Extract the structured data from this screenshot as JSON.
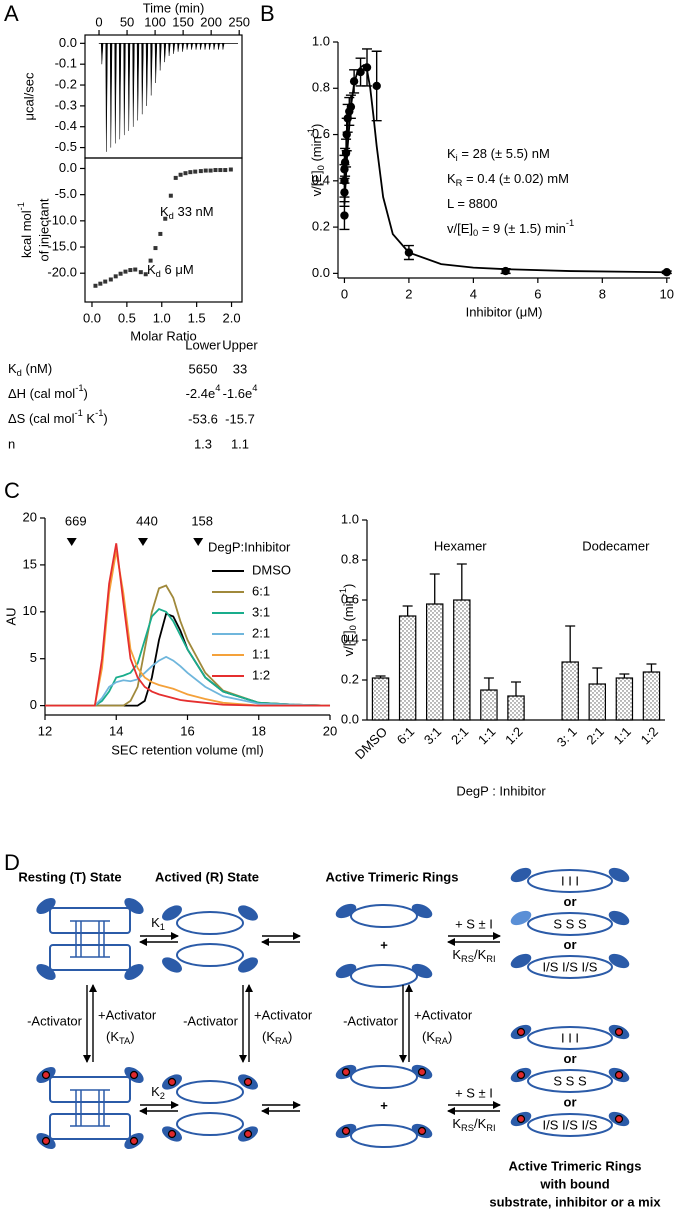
{
  "panel_labels": {
    "a": "A",
    "b": "B",
    "c": "C",
    "d": "D"
  },
  "chart_data": [
    {
      "type": "spike",
      "xlabel": "Time (min)",
      "ylabel": "μcal/sec",
      "x": [
        5,
        13,
        21,
        29,
        37,
        45,
        53,
        61,
        69,
        77,
        85,
        93,
        101,
        109,
        117,
        125,
        133,
        141,
        149,
        157,
        165,
        173,
        181,
        189,
        197,
        205,
        213,
        221
      ],
      "values": [
        -0.1,
        -0.52,
        -0.5,
        -0.48,
        -0.46,
        -0.44,
        -0.42,
        -0.4,
        -0.37,
        -0.34,
        -0.3,
        -0.25,
        -0.19,
        -0.13,
        -0.09,
        -0.06,
        -0.05,
        -0.04,
        -0.04,
        -0.03,
        -0.03,
        -0.03,
        -0.03,
        -0.03,
        -0.03,
        -0.03,
        -0.03,
        -0.03
      ],
      "color": "#000000",
      "xlim": [
        -25,
        255
      ],
      "xticks": [
        0,
        50,
        100,
        150,
        200,
        250
      ],
      "ylim": [
        -0.55,
        0.04
      ],
      "yticks": [
        {
          "value": 0,
          "label": "0.0"
        },
        -0.1,
        -0.2,
        -0.3,
        -0.4,
        -0.5
      ]
    },
    {
      "type": "scatter",
      "xlabel": "Molar Ratio",
      "ylabel": [
        [
          "kcal mol",
          {
            "sup": "-1"
          }
        ],
        "of injectant"
      ],
      "annotations": [
        [
          "K",
          {
            "sub": "d"
          },
          " 33 nM"
        ],
        [
          "K",
          {
            "sub": "d"
          },
          " 6 μM"
        ]
      ],
      "x": [
        0.05,
        0.12,
        0.19,
        0.27,
        0.34,
        0.41,
        0.48,
        0.55,
        0.62,
        0.7,
        0.77,
        0.84,
        0.91,
        0.98,
        1.05,
        1.13,
        1.2,
        1.27,
        1.34,
        1.41,
        1.48,
        1.56,
        1.63,
        1.7,
        1.77,
        1.84,
        1.91,
        1.99
      ],
      "values": [
        -22.4,
        -22.0,
        -21.6,
        -21.2,
        -20.6,
        -20.1,
        -19.7,
        -19.4,
        -19.3,
        -19.8,
        -20.2,
        -17.6,
        -15.2,
        -12.5,
        -9.6,
        -5.2,
        -1.8,
        -1.2,
        -0.9,
        -0.7,
        -0.6,
        -0.5,
        -0.4,
        -0.4,
        -0.3,
        -0.3,
        -0.3,
        -0.2
      ],
      "color": "#333333",
      "xlim": [
        -0.1,
        2.15
      ],
      "xticks": [
        {
          "value": 0,
          "label": "0.0"
        },
        0.5,
        {
          "value": 1,
          "label": "1.0"
        },
        1.5,
        {
          "value": 2,
          "label": "2.0"
        }
      ],
      "ylim": [
        -25.5,
        2
      ],
      "yticks": [
        {
          "value": 0,
          "label": "0.0"
        },
        {
          "value": -5,
          "label": "-5.0"
        },
        {
          "value": -10,
          "label": "-10.0"
        },
        {
          "value": -15,
          "label": "-15.0"
        },
        {
          "value": -20,
          "label": "-20.0"
        }
      ]
    },
    {
      "type": "scatter",
      "xlabel": "Inhibitor  (μM)",
      "ylabel": [
        "v/[E]",
        {
          "sub": "0"
        },
        " (min",
        {
          "sup": "-1"
        },
        ")"
      ],
      "annotations": [
        [
          "K",
          {
            "sub": "i"
          },
          " = 28 (± 5.5) nM"
        ],
        [
          "K",
          {
            "sub": "R"
          },
          " = 0.4 (± 0.02) mM"
        ],
        [
          "L = 8800"
        ],
        [
          "v/[E]",
          {
            "sub": "0"
          },
          " = 9 (± 1.5) min",
          {
            "sup": "-1"
          }
        ]
      ],
      "x": [
        0,
        0,
        0,
        0,
        0.02,
        0.05,
        0.07,
        0.1,
        0.15,
        0.2,
        0.3,
        0.5,
        0.7,
        1,
        2,
        5,
        10
      ],
      "values": [
        0.25,
        0.35,
        0.4,
        0.45,
        0.48,
        0.52,
        0.6,
        0.67,
        0.7,
        0.72,
        0.83,
        0.87,
        0.89,
        0.81,
        0.09,
        0.01,
        0.005
      ],
      "errors": [
        0.06,
        0.06,
        0.07,
        0.06,
        0.06,
        0.06,
        0.07,
        0.06,
        0.06,
        0.05,
        0.05,
        0.06,
        0.08,
        0.15,
        0.03,
        0.01,
        0.005
      ],
      "curve": {
        "x": [
          0,
          0.1,
          0.2,
          0.3,
          0.4,
          0.5,
          0.6,
          0.7,
          0.8,
          0.9,
          1,
          1.2,
          1.5,
          2,
          3,
          4,
          5,
          7,
          10
        ],
        "values": [
          0.3,
          0.55,
          0.72,
          0.82,
          0.87,
          0.89,
          0.9,
          0.88,
          0.8,
          0.68,
          0.55,
          0.33,
          0.17,
          0.09,
          0.04,
          0.025,
          0.018,
          0.01,
          0.005
        ]
      },
      "color": "#000000",
      "xlim": [
        -0.2,
        10.1
      ],
      "xticks": [
        0,
        2,
        4,
        6,
        8,
        10
      ],
      "ylim": [
        -0.02,
        1.0
      ],
      "yticks": [
        {
          "value": 0,
          "label": "0.0"
        },
        0.2,
        0.4,
        0.6,
        0.8,
        {
          "value": 1,
          "label": "1.0"
        }
      ]
    },
    {
      "type": "line",
      "xlabel": "SEC retention volume (ml)",
      "ylabel": "AU",
      "legend_title": "DegP:Inhibitor",
      "markers": [
        {
          "label": "669",
          "x": 12.75
        },
        {
          "label": "440",
          "x": 14.75
        },
        {
          "label": "158",
          "x": 16.3
        }
      ],
      "x": [
        12,
        13,
        13.4,
        13.6,
        13.8,
        14,
        14.2,
        14.4,
        14.6,
        14.8,
        15,
        15.2,
        15.4,
        15.6,
        15.8,
        16,
        16.5,
        17,
        18,
        19,
        20
      ],
      "series": [
        {
          "name": "DMSO",
          "color": "#000000",
          "values": [
            0,
            0,
            0,
            0,
            0,
            0,
            0,
            0,
            0,
            0.5,
            3,
            7,
            9.8,
            9.5,
            8,
            6,
            3,
            1.5,
            0.3,
            0.1,
            0
          ]
        },
        {
          "name": "6:1",
          "color": "#a0893b",
          "values": [
            0,
            0,
            0,
            0,
            0,
            0,
            0,
            0.5,
            2,
            6,
            10,
            12.5,
            12.8,
            11.5,
            9,
            7,
            3.5,
            1.6,
            0.3,
            0.1,
            0
          ]
        },
        {
          "name": "3:1",
          "color": "#19ad8c",
          "values": [
            0,
            0,
            0,
            0.5,
            1.5,
            3,
            3.2,
            3.5,
            4.5,
            7,
            9.5,
            10.3,
            10,
            9,
            7.5,
            6,
            3,
            1.5,
            0.3,
            0.1,
            0
          ]
        },
        {
          "name": "2:1",
          "color": "#6fb6dc",
          "values": [
            0,
            0,
            0,
            0.8,
            2,
            2.5,
            2.7,
            2.6,
            2.8,
            3.5,
            4.2,
            4.8,
            5.2,
            4.8,
            4.2,
            3.5,
            2,
            1,
            0.2,
            0.1,
            0
          ]
        },
        {
          "name": "1:1",
          "color": "#f4a13a",
          "values": [
            0,
            0,
            0,
            4,
            12,
            16.5,
            12,
            6,
            4,
            3,
            2.5,
            2.2,
            2,
            1.8,
            1.5,
            1.2,
            0.7,
            0.3,
            0,
            0,
            0
          ]
        },
        {
          "name": "1:2",
          "color": "#e52f2f",
          "values": [
            0,
            0,
            0,
            5,
            13,
            17.3,
            11,
            5,
            3,
            2,
            1.5,
            1.2,
            1,
            0.8,
            0.6,
            0.5,
            0.3,
            0.1,
            0,
            0,
            0
          ]
        }
      ],
      "xlim": [
        12,
        20
      ],
      "xticks": [
        12,
        14,
        16,
        18,
        20
      ],
      "ylim": [
        -1,
        20
      ],
      "yticks": [
        0,
        5,
        10,
        15,
        20
      ]
    },
    {
      "type": "bar",
      "xlabel": "DegP : Inhibitor",
      "ylabel": [
        "v/[E]",
        {
          "sub": "0"
        },
        " (min",
        {
          "sup": "-1"
        },
        ")"
      ],
      "group_labels": [
        "Hexamer",
        "Dodecamer"
      ],
      "categories": [
        "DMSO",
        "6:1",
        "3:1",
        "2:1",
        "1:1",
        "1:2",
        null,
        "3: 1",
        "2:1",
        "1:1",
        "1:2"
      ],
      "values": [
        0.21,
        0.52,
        0.58,
        0.6,
        0.15,
        0.12,
        null,
        0.29,
        0.18,
        0.21,
        0.24
      ],
      "errors": [
        0.01,
        0.05,
        0.15,
        0.18,
        0.06,
        0.07,
        null,
        0.18,
        0.08,
        0.02,
        0.04
      ],
      "color": "#000000",
      "ylim": [
        0,
        1.0
      ],
      "yticks": [
        {
          "value": 0,
          "label": "0.0"
        },
        0.2,
        0.4,
        0.6,
        0.8,
        {
          "value": 1,
          "label": "1.0"
        }
      ]
    }
  ],
  "table": {
    "columns": [
      "Lower",
      "Upper"
    ],
    "rows": [
      {
        "label": [
          "K",
          {
            "sub": "d"
          },
          " (nM)"
        ],
        "cells": [
          "5650",
          "33"
        ]
      },
      {
        "label": [
          "ΔH (cal mol",
          {
            "sup": "-1"
          },
          ")"
        ],
        "cells": [
          [
            "-2.4e",
            {
              "sup": "4"
            }
          ],
          [
            "-1.6e",
            {
              "sup": "4"
            }
          ]
        ]
      },
      {
        "label": [
          "ΔS (cal mol",
          {
            "sup": "-1"
          },
          " K",
          {
            "sup": "-1"
          },
          ")"
        ],
        "cells": [
          "-53.6",
          "-15.7"
        ]
      },
      {
        "label": "n",
        "cells": [
          "1.3",
          "1.1"
        ]
      }
    ]
  },
  "diagram": {
    "headings": [
      "Resting (T) State",
      "Actived (R) State",
      "Active Trimeric Rings"
    ],
    "k1": [
      "K",
      {
        "sub": "1"
      }
    ],
    "k2": [
      "K",
      {
        "sub": "2"
      }
    ],
    "activator_minus": "-Activator",
    "activator_plus": "+Activator",
    "k_ta": [
      "(K",
      {
        "sub": "TA"
      },
      ")"
    ],
    "k_ra": [
      "(K",
      {
        "sub": "RA"
      },
      ")"
    ],
    "plus": "+",
    "s_i": "+ S ± I",
    "k_rs_ri": [
      "K",
      {
        "sub": "RS"
      },
      "/K",
      {
        "sub": "RI"
      }
    ],
    "or": "or",
    "ring_labels": [
      "I I I",
      "S S S",
      "I/S  I/S  I/S"
    ],
    "caption": [
      "Active Trimeric Rings",
      "with bound",
      "substrate, inhibitor or a mix"
    ]
  }
}
